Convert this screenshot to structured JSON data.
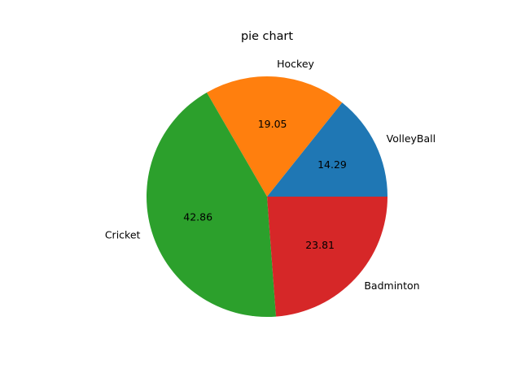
{
  "chart_data": {
    "type": "pie",
    "title": "pie chart",
    "categories": [
      "VolleyBall",
      "Hockey",
      "Cricket",
      "Badminton"
    ],
    "values": [
      14.29,
      19.05,
      42.86,
      23.81
    ],
    "percent_labels": [
      "14.29",
      "19.05",
      "42.86",
      "23.81"
    ],
    "colors": [
      "#1f77b4",
      "#ff7f0e",
      "#2ca02c",
      "#d62728"
    ],
    "start_angle_deg": 0,
    "direction": "counterclockwise",
    "legend": "none"
  }
}
